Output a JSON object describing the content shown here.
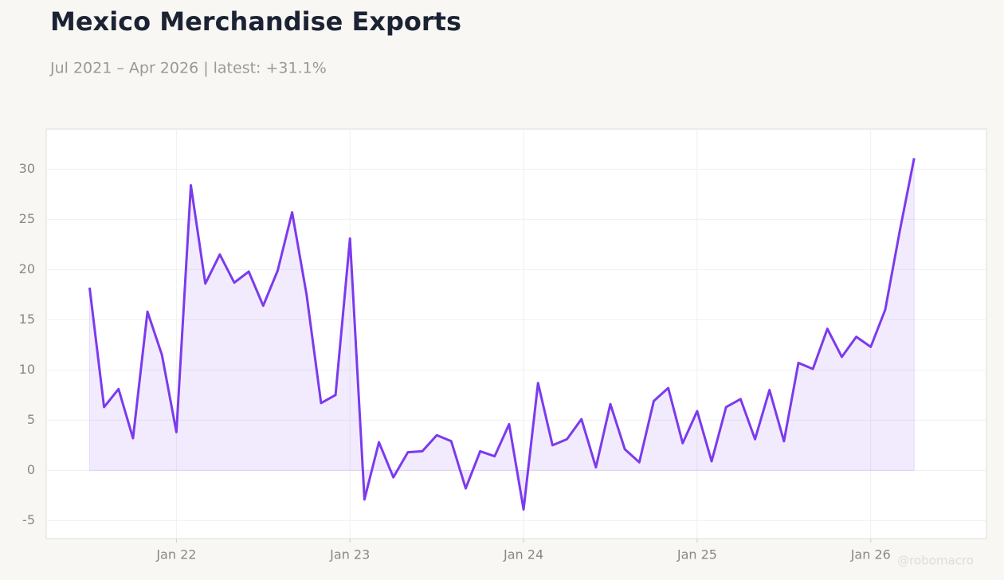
{
  "chart_data": {
    "type": "line",
    "title": "Mexico Merchandise Exports",
    "subtitle": "Jul 2021 – Apr 2026 | latest: +31.1%",
    "watermark": "@robomacro",
    "x": [
      "2021-07",
      "2021-08",
      "2021-09",
      "2021-10",
      "2021-11",
      "2021-12",
      "2022-01",
      "2022-02",
      "2022-03",
      "2022-04",
      "2022-05",
      "2022-06",
      "2022-07",
      "2022-08",
      "2022-09",
      "2022-10",
      "2022-11",
      "2022-12",
      "2023-01",
      "2023-02",
      "2023-03",
      "2023-04",
      "2023-05",
      "2023-06",
      "2023-07",
      "2023-08",
      "2023-09",
      "2023-10",
      "2023-11",
      "2023-12",
      "2024-01",
      "2024-02",
      "2024-03",
      "2024-04",
      "2024-05",
      "2024-06",
      "2024-07",
      "2024-08",
      "2024-09",
      "2024-10",
      "2024-11",
      "2024-12",
      "2025-01",
      "2025-02",
      "2025-03",
      "2025-04",
      "2025-05",
      "2025-06",
      "2025-07",
      "2025-08",
      "2025-09",
      "2025-10",
      "2025-11",
      "2025-12",
      "2026-01",
      "2026-02",
      "2026-03",
      "2026-04"
    ],
    "series": [
      {
        "color": "#7c3aed",
        "values": [
          18.2,
          6.3,
          8.1,
          3.2,
          15.8,
          11.5,
          3.8,
          28.4,
          18.6,
          21.5,
          18.7,
          19.8,
          16.4,
          19.9,
          25.7,
          17.5,
          6.7,
          7.5,
          23.1,
          -2.9,
          2.8,
          -0.7,
          1.8,
          1.9,
          3.5,
          2.9,
          -1.8,
          1.9,
          1.4,
          4.6,
          -3.9,
          8.7,
          2.5,
          3.1,
          5.1,
          0.3,
          6.6,
          2.1,
          0.8,
          6.9,
          8.2,
          2.7,
          5.9,
          0.9,
          6.3,
          7.1,
          3.1,
          8.0,
          2.9,
          10.7,
          10.1,
          14.1,
          11.3,
          13.3,
          12.3,
          16.0,
          23.8,
          31.1
        ]
      }
    ],
    "xlim": [
      "2021-04",
      "2026-09"
    ],
    "xticks": [
      {
        "value": "2022-01",
        "label": "Jan 22"
      },
      {
        "value": "2023-01",
        "label": "Jan 23"
      },
      {
        "value": "2024-01",
        "label": "Jan 24"
      },
      {
        "value": "2025-01",
        "label": "Jan 25"
      },
      {
        "value": "2026-01",
        "label": "Jan 26"
      }
    ],
    "ylim": [
      -6.8,
      34
    ],
    "yticks": [
      -5,
      0,
      5,
      10,
      15,
      20,
      25,
      30
    ],
    "grid": true,
    "fill": true
  }
}
